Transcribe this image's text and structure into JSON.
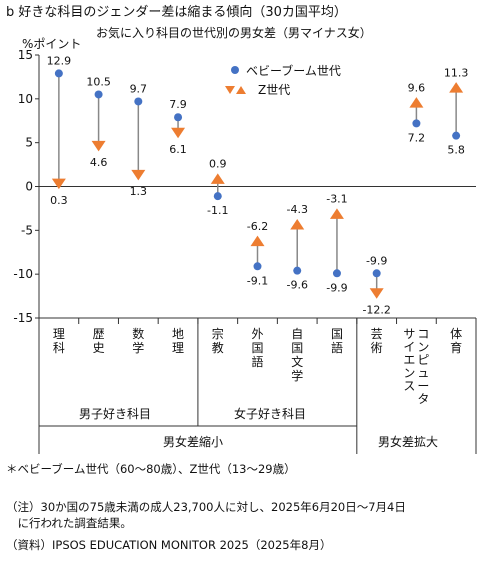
{
  "title": "b 好きな科目のジェンダー差は縮まる傾向（30カ国平均）",
  "chart_data": {
    "type": "scatter",
    "subtitle": "お気に入り科目の世代別の男女差（男マイナス女）",
    "ylabel": "%ポイント",
    "ylim": [
      -15,
      15
    ],
    "yticks": [
      -15,
      -10,
      -5,
      0,
      5,
      10,
      15
    ],
    "categories": [
      "理科",
      "歴史",
      "数学",
      "地理",
      "宗教",
      "外国語",
      "自国文学",
      "国語",
      "芸術",
      "コンピュータサイエンス",
      "体育"
    ],
    "series": [
      {
        "name": "ベビーブーム世代",
        "marker": "circle",
        "color": "#4472C4",
        "values": [
          12.9,
          10.5,
          9.7,
          7.9,
          -1.1,
          -9.1,
          -9.6,
          -9.9,
          -9.9,
          7.2,
          5.8
        ]
      },
      {
        "name": "Z世代",
        "marker": "triangle",
        "color": "#ED7D31",
        "values": [
          0.3,
          4.6,
          1.3,
          6.1,
          0.9,
          -6.2,
          -4.3,
          -3.1,
          -12.2,
          9.6,
          11.3
        ]
      }
    ],
    "value_labels": [
      {
        "bb": "12.9",
        "z": "0.3"
      },
      {
        "bb": "10.5",
        "z": "4.6"
      },
      {
        "bb": "9.7",
        "z": "1.3"
      },
      {
        "bb": "7.9",
        "z": "6.1"
      },
      {
        "bb": "-1.1",
        "z": "0.9"
      },
      {
        "bb": "-9.1",
        "z": "-6.2"
      },
      {
        "bb": "-9.6",
        "z": "-4.3"
      },
      {
        "bb": "-9.9",
        "z": "-3.1"
      },
      {
        "bb": "-9.9",
        "z": "-12.2"
      },
      {
        "bb": "7.2",
        "z": "9.6"
      },
      {
        "bb": "5.8",
        "z": "11.3"
      }
    ],
    "groups": {
      "boys": "男子好き科目",
      "girls": "女子好き科目",
      "shrink": "男女差縮小",
      "expand": "男女差拡大"
    },
    "legend_placement": "top-right",
    "grid": false
  },
  "footnotes": {
    "generation": "＊ベビーブーム世代（60〜80歳）、Z世代（13〜29歳）",
    "note_line1": "（注）30か国の75歳未満の成人23,700人に対し、2025年6月20日〜7月4日",
    "note_line2": "　に行われた調査結果。",
    "source": "（資料）IPSOS EDUCATION MONITOR 2025（2025年8月）"
  }
}
